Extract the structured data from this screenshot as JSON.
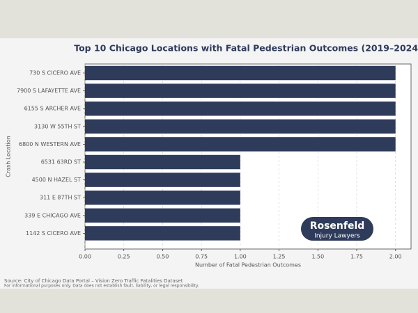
{
  "chart_data": {
    "type": "bar",
    "orientation": "horizontal",
    "title": "Top 10 Chicago Locations with Fatal Pedestrian Outcomes (2019–2024)",
    "x_label": "Number of Fatal Pedestrian Outcomes",
    "y_label": "Crash Location",
    "categories": [
      "730 S CICERO AVE",
      "7900 S LAFAYETTE AVE",
      "6155 S ARCHER AVE",
      "3130 W 55TH ST",
      "6800 N WESTERN AVE",
      "6531 63RD ST",
      "4500 N HAZEL ST",
      "311 E 87TH ST",
      "339 E CHICAGO AVE",
      "1142 S CICERO AVE"
    ],
    "values": [
      2,
      2,
      2,
      2,
      2,
      1,
      1,
      1,
      1,
      1
    ],
    "color": "#2e3b5b",
    "xlim": [
      0,
      2.1
    ],
    "xticks": [
      {
        "value": 0,
        "label": "0.00"
      },
      {
        "value": 0.25,
        "label": "0.25"
      },
      {
        "value": 0.5,
        "label": "0.50"
      },
      {
        "value": 0.75,
        "label": "0.75"
      },
      {
        "value": 1,
        "label": "1.00"
      },
      {
        "value": 1.25,
        "label": "1.25"
      },
      {
        "value": 1.5,
        "label": "1.50"
      },
      {
        "value": 1.75,
        "label": "1.75"
      },
      {
        "value": 2,
        "label": "2.00"
      }
    ],
    "grid": true
  },
  "logo": {
    "name": "Rosenfeld",
    "subtitle": "Injury Lawyers"
  },
  "footer": {
    "source": "Source: City of Chicago Data Portal – Vision Zero Traffic Fatalities Dataset",
    "disclaimer": "For informational purposes only. Data does not establish fault, liability, or legal responsibility."
  }
}
